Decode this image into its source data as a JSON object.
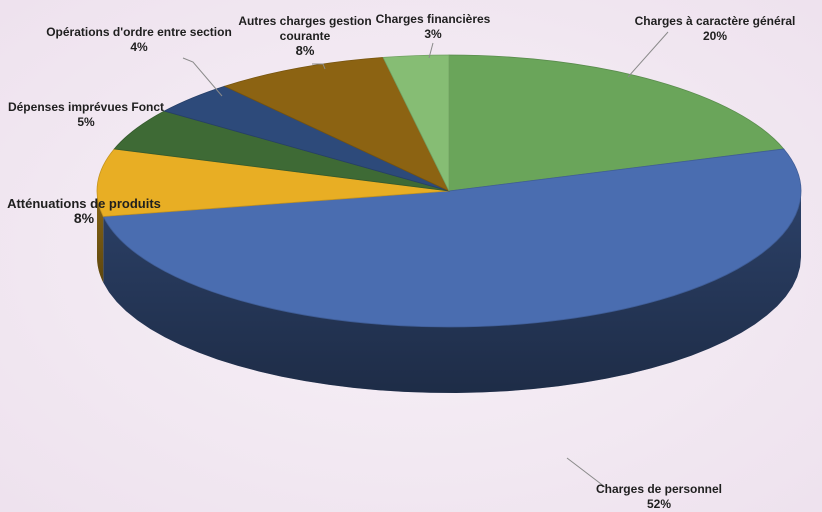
{
  "chart_data": {
    "type": "pie",
    "title": "",
    "style": "3d",
    "slices": [
      {
        "label": "Charges à caractère général",
        "value": 20,
        "display": "20%",
        "color": "#6aa55a"
      },
      {
        "label": "Charges de personnel",
        "value": 52,
        "display": "52%",
        "color": "#4a6db0"
      },
      {
        "label": "Atténuations de produits",
        "value": 8,
        "display": "8%",
        "color": "#e8ae24"
      },
      {
        "label": "Dépenses imprévues Fonct",
        "value": 5,
        "display": "5%",
        "color": "#3e6a35"
      },
      {
        "label": "Opérations d'ordre entre section",
        "value": 4,
        "display": "4%",
        "color": "#2d4a7a"
      },
      {
        "label": "Autres charges gestion courante",
        "value": 8,
        "display": "8%",
        "color": "#8c6312"
      },
      {
        "label": "Charges financières",
        "value": 3,
        "display": "3%",
        "color": "#86bd74"
      }
    ]
  }
}
